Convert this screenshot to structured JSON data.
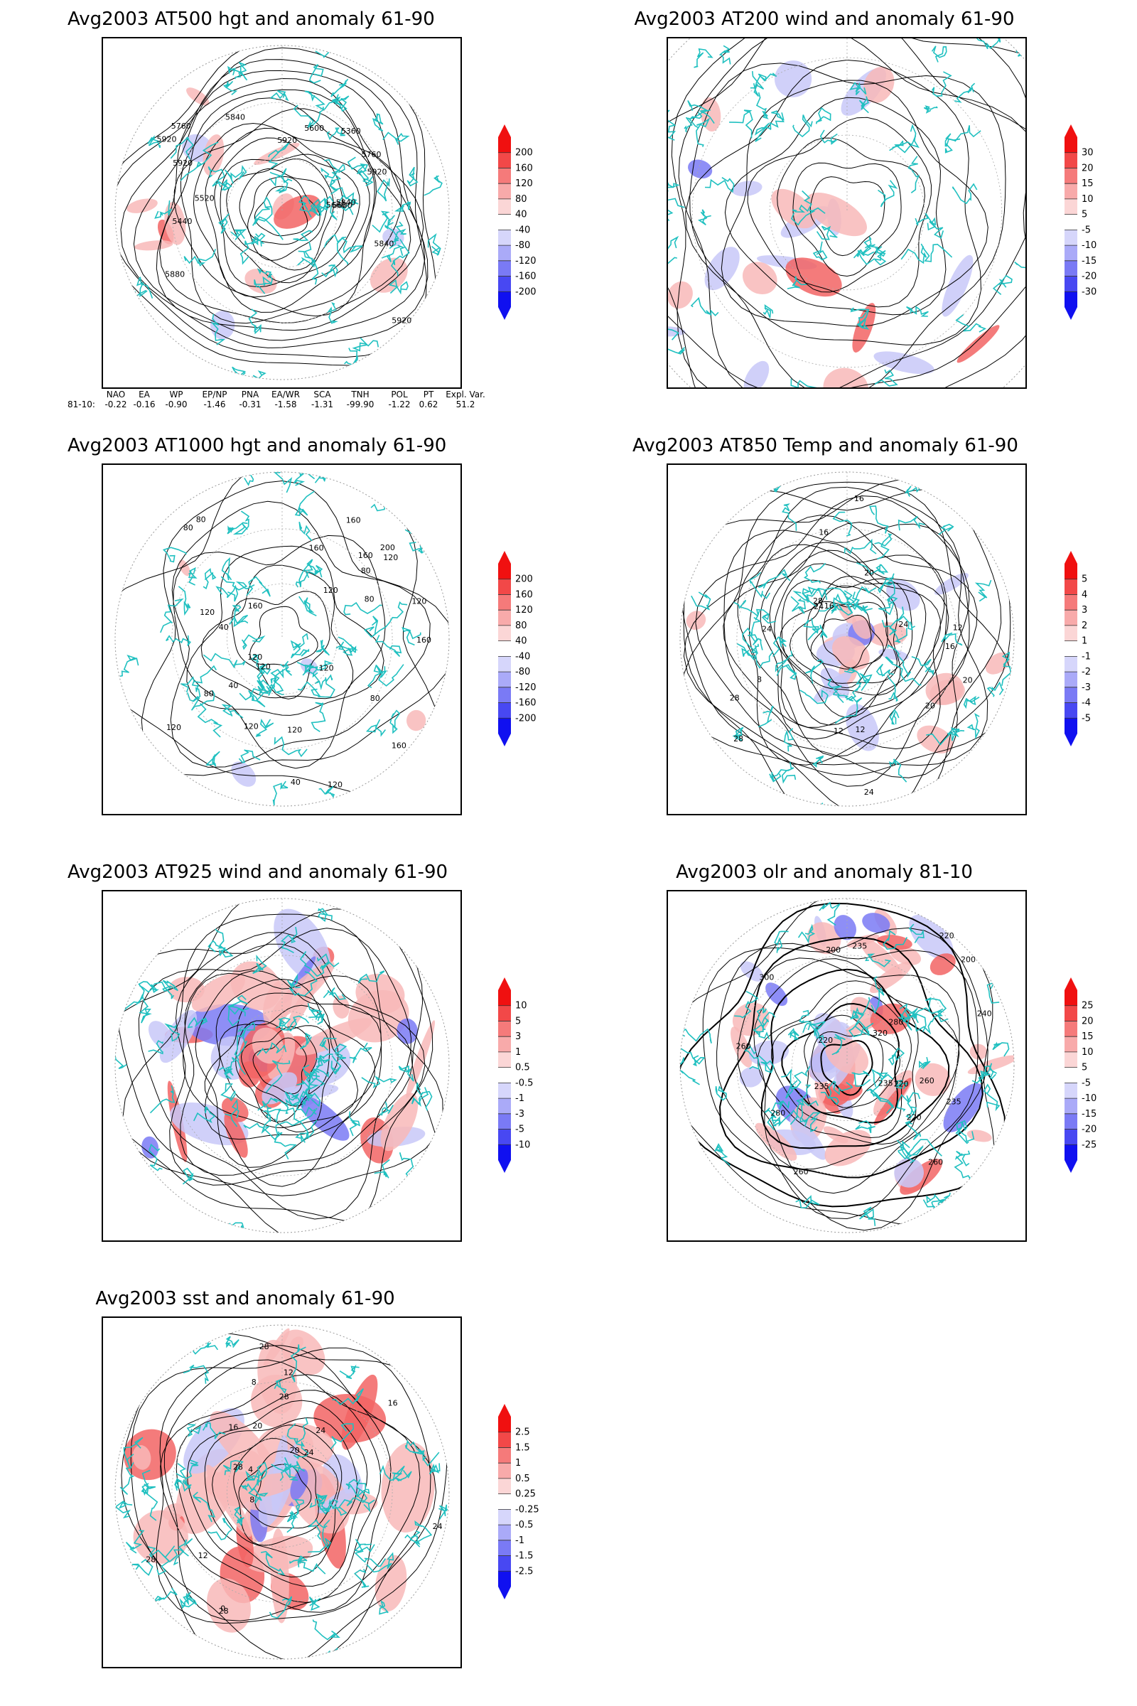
{
  "panels": [
    {
      "id": "at500",
      "title": "Avg2003 AT500 hgt and anomaly 61-90",
      "colorbar": [
        "200",
        "160",
        "120",
        "80",
        "40",
        "-40",
        "-80",
        "-120",
        "-160",
        "-200"
      ],
      "contour_labels": [
        "5920",
        "5840",
        "5760",
        "5660",
        "5600",
        "5360",
        "5440",
        "5520",
        "5600",
        "5880",
        "5760",
        "5840",
        "5920",
        "5920",
        "5840",
        "5920",
        "5920"
      ]
    },
    {
      "id": "at200",
      "title": "Avg2003 AT200 wind and anomaly 61-90",
      "colorbar": [
        "30",
        "20",
        "15",
        "10",
        "5",
        "-5",
        "-10",
        "-15",
        "-20",
        "-30"
      ],
      "contour_labels": []
    },
    {
      "id": "at1000",
      "title": "Avg2003 AT1000 hgt and anomaly 61-90",
      "colorbar": [
        "200",
        "160",
        "120",
        "80",
        "40",
        "-40",
        "-80",
        "-120",
        "-160",
        "-200"
      ],
      "contour_labels": [
        "120",
        "160",
        "160",
        "200",
        "120",
        "80",
        "120",
        "160",
        "120",
        "80",
        "40",
        "80",
        "120",
        "40",
        "80",
        "120",
        "160",
        "120",
        "160",
        "120",
        "120",
        "160",
        "80",
        "40",
        "80",
        "120",
        "120"
      ]
    },
    {
      "id": "at850",
      "title": "Avg2003 AT850 Temp and anomaly 61-90",
      "colorbar": [
        "5",
        "4",
        "3",
        "2",
        "1",
        "-1",
        "-2",
        "-3",
        "-4",
        "-5"
      ],
      "contour_labels": [
        "16",
        "16",
        "12",
        "8",
        "20",
        "24",
        "28",
        "24",
        "28",
        "24",
        "12",
        "20",
        "28",
        "24",
        "20",
        "16",
        "12",
        "16"
      ]
    },
    {
      "id": "at925",
      "title": "Avg2003 AT925 wind and anomaly 61-90",
      "colorbar": [
        "10",
        "5",
        "3",
        "1",
        "0.5",
        "-0.5",
        "-1",
        "-3",
        "-5",
        "-10"
      ],
      "contour_labels": []
    },
    {
      "id": "olr",
      "title": "Avg2003 olr and anomaly 81-10",
      "colorbar": [
        "25",
        "20",
        "15",
        "10",
        "5",
        "-5",
        "-10",
        "-15",
        "-20",
        "-25"
      ],
      "contour_labels": [
        "280",
        "260",
        "235",
        "220",
        "240",
        "260",
        "200",
        "220",
        "235",
        "260",
        "220",
        "235",
        "280",
        "300",
        "320",
        "260",
        "200",
        "235",
        "220"
      ]
    },
    {
      "id": "sst",
      "title": "Avg2003 sst and anomaly 61-90",
      "colorbar": [
        "2.5",
        "1.5",
        "1",
        "0.5",
        "0.25",
        "-0.25",
        "-0.5",
        "-1",
        "-1.5",
        "-2.5"
      ],
      "contour_labels": [
        "28",
        "28",
        "24",
        "20",
        "16",
        "12",
        "8",
        "4",
        "0",
        "24",
        "28",
        "16",
        "12",
        "8",
        "20",
        "28",
        "24",
        "28"
      ]
    }
  ],
  "indices": {
    "headers": [
      "NAO",
      "EA",
      "WP",
      "EP/NP",
      "PNA",
      "EA/WR",
      "SCA",
      "TNH",
      "POL",
      "PT",
      "Expl. Var."
    ],
    "row_label": "81-10:",
    "values": [
      "-0.22",
      "-0.16",
      "-0.90",
      "-1.46",
      "-0.31",
      "-1.58",
      "-1.31",
      "-99.90",
      "-1.22",
      "0.62",
      "51.2"
    ]
  }
}
